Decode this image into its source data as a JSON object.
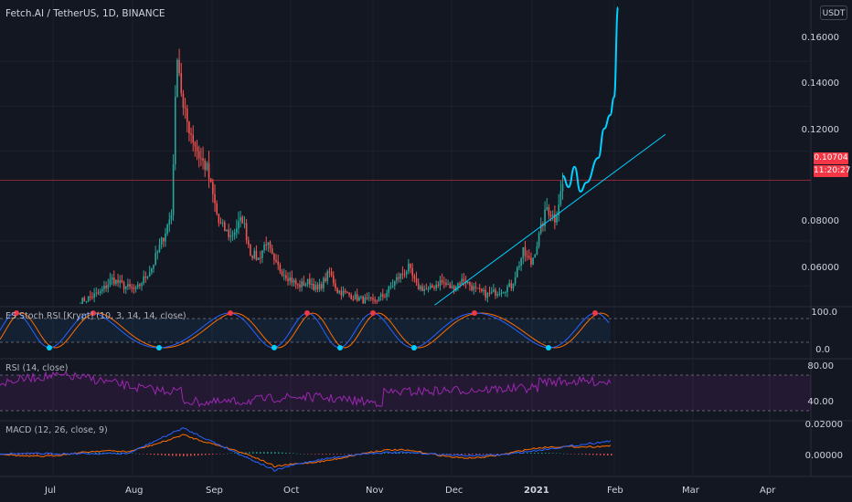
{
  "title": "Fetch.AI / TetherUS, 1D, BINANCE",
  "currency_button": "USDT",
  "price_tag": "0.10704",
  "countdown_tag": "11:20:27",
  "colors": {
    "bg": "#131722",
    "up": "#26a69a",
    "down": "#ef5350",
    "grid": "#1e222d",
    "cyan": "#00d0ff",
    "rsi": "#9c27b0",
    "macd": "#2962ff",
    "signal": "#ff6d00",
    "red_dot": "#f23645"
  },
  "main_axis": {
    "labels": [
      "0.16000",
      "0.14000",
      "0.12000",
      "0.08000",
      "0.06000"
    ]
  },
  "stoch": {
    "label": "ES Stoch RSI [Krypt] (10, 3, 14, 14, close)",
    "axis": [
      "100.0",
      "0.0"
    ]
  },
  "rsi": {
    "label": "RSI (14, close)",
    "axis": [
      "80.00",
      "40.00"
    ]
  },
  "macd": {
    "label": "MACD (12, 26, close, 9)",
    "axis": [
      "0.02000",
      "0.00000"
    ]
  },
  "x_axis": [
    "Jul",
    "Aug",
    "Sep",
    "Oct",
    "Nov",
    "Dec",
    "2021",
    "Feb",
    "Mar",
    "Apr"
  ],
  "chart_data": {
    "type": "candlestick",
    "ylim": [
      0.052,
      0.184
    ],
    "anchors": [
      [
        0,
        0.053
      ],
      [
        10,
        0.057
      ],
      [
        16,
        0.063
      ],
      [
        22,
        0.06
      ],
      [
        28,
        0.058
      ],
      [
        36,
        0.068
      ],
      [
        42,
        0.082
      ],
      [
        46,
        0.092
      ],
      [
        49,
        0.165
      ],
      [
        52,
        0.138
      ],
      [
        56,
        0.128
      ],
      [
        60,
        0.118
      ],
      [
        64,
        0.112
      ],
      [
        70,
        0.088
      ],
      [
        76,
        0.082
      ],
      [
        82,
        0.09
      ],
      [
        86,
        0.075
      ],
      [
        90,
        0.072
      ],
      [
        94,
        0.08
      ],
      [
        98,
        0.07
      ],
      [
        104,
        0.065
      ],
      [
        110,
        0.06
      ],
      [
        116,
        0.062
      ],
      [
        120,
        0.058
      ],
      [
        126,
        0.066
      ],
      [
        130,
        0.058
      ],
      [
        136,
        0.056
      ],
      [
        142,
        0.054
      ],
      [
        148,
        0.053
      ],
      [
        154,
        0.056
      ],
      [
        160,
        0.063
      ],
      [
        166,
        0.068
      ],
      [
        170,
        0.06
      ],
      [
        176,
        0.058
      ],
      [
        182,
        0.062
      ],
      [
        188,
        0.059
      ],
      [
        194,
        0.063
      ],
      [
        200,
        0.058
      ],
      [
        206,
        0.056
      ],
      [
        212,
        0.058
      ],
      [
        218,
        0.06
      ],
      [
        224,
        0.075
      ],
      [
        228,
        0.07
      ],
      [
        232,
        0.082
      ],
      [
        236,
        0.095
      ],
      [
        240,
        0.09
      ],
      [
        244,
        0.105
      ]
    ],
    "projection": [
      [
        0.109,
        0.0
      ],
      [
        0.104,
        3
      ],
      [
        0.113,
        6
      ],
      [
        0.102,
        9
      ],
      [
        0.106,
        12
      ],
      [
        0.117,
        18
      ],
      [
        0.13,
        21
      ],
      [
        0.136,
        24
      ],
      [
        0.144,
        26
      ],
      [
        0.184,
        28
      ]
    ],
    "trendline": [
      [
        0.0515,
        0
      ],
      [
        0.1275,
        45
      ]
    ],
    "price_line": 0.10704
  }
}
